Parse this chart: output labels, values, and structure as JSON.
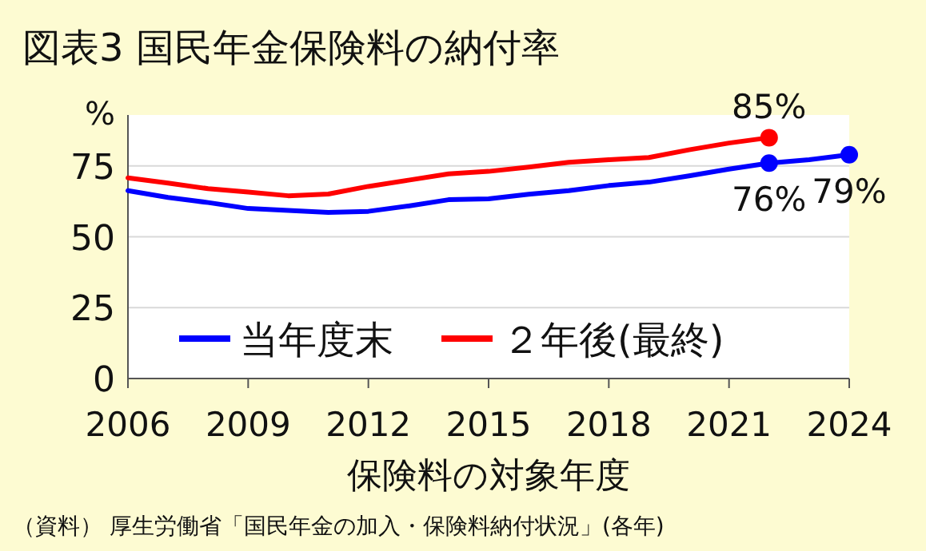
{
  "chart_data": {
    "type": "line",
    "title": "図表3  国民年金保険料の納付率",
    "ylabel": "%",
    "xlabel": "保険料の対象年度",
    "annotations": [
      "（資料） 厚生労働省「国民年金の加入・保険料納付状況」(各年)"
    ],
    "x": [
      2006,
      2007,
      2008,
      2009,
      2010,
      2011,
      2012,
      2013,
      2014,
      2015,
      2016,
      2017,
      2018,
      2019,
      2020,
      2021,
      2022,
      2023,
      2024
    ],
    "xlim": [
      2006,
      2024
    ],
    "xticks": [
      2006,
      2009,
      2012,
      2015,
      2018,
      2021,
      2024
    ],
    "ylim": [
      0,
      93
    ],
    "yticks": [
      0,
      25,
      50,
      75
    ],
    "grid": "y",
    "legend": "bottom",
    "line_style": "solid",
    "series": [
      {
        "name": "当年度末",
        "color": "#0000ff",
        "values": [
          66.3,
          63.9,
          62.1,
          60.0,
          59.3,
          58.6,
          59.0,
          60.9,
          63.1,
          63.4,
          65.0,
          66.3,
          68.1,
          69.3,
          71.5,
          73.9,
          76,
          77.2,
          79
        ],
        "value_labels": [
          null,
          null,
          null,
          null,
          null,
          null,
          null,
          null,
          null,
          null,
          null,
          null,
          null,
          null,
          null,
          null,
          "76%",
          null,
          "79%"
        ]
      },
      {
        "name": "２年後(最終)",
        "color": "#ff0000",
        "values": [
          70.8,
          69,
          67,
          65.8,
          64.5,
          65.1,
          67.8,
          70,
          72.2,
          73.1,
          74.6,
          76.3,
          77.2,
          78,
          80.7,
          83.1,
          85,
          null,
          null
        ],
        "value_labels": [
          null,
          null,
          null,
          null,
          null,
          null,
          null,
          null,
          null,
          null,
          null,
          null,
          null,
          null,
          null,
          null,
          "85%",
          null,
          null
        ]
      }
    ]
  }
}
